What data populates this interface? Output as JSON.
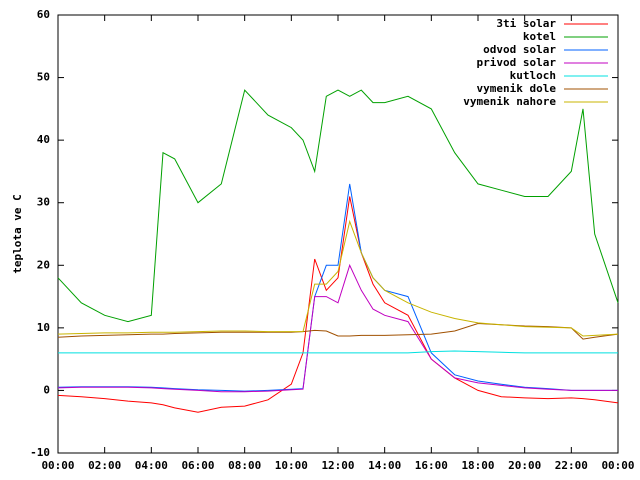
{
  "chart_data": {
    "type": "line",
    "y_label": "teplota ve C",
    "x": [
      0,
      1,
      2,
      3,
      4,
      4.5,
      5,
      6,
      7,
      8,
      9,
      10,
      10.5,
      11,
      11.5,
      12,
      12.5,
      13,
      13.5,
      14,
      15,
      16,
      17,
      18,
      19,
      20,
      21,
      22,
      22.5,
      23,
      24
    ],
    "xlim": [
      0,
      24
    ],
    "xticks": [
      {
        "value": 0,
        "label": "00:00"
      },
      {
        "value": 2,
        "label": "02:00"
      },
      {
        "value": 4,
        "label": "04:00"
      },
      {
        "value": 6,
        "label": "06:00"
      },
      {
        "value": 8,
        "label": "08:00"
      },
      {
        "value": 10,
        "label": "10:00"
      },
      {
        "value": 12,
        "label": "12:00"
      },
      {
        "value": 14,
        "label": "14:00"
      },
      {
        "value": 16,
        "label": "16:00"
      },
      {
        "value": 18,
        "label": "18:00"
      },
      {
        "value": 20,
        "label": "20:00"
      },
      {
        "value": 22,
        "label": "22:00"
      },
      {
        "value": 24,
        "label": "00:00"
      }
    ],
    "ylim": [
      -10,
      60
    ],
    "yticks": [
      -10,
      0,
      10,
      20,
      30,
      40,
      50,
      60
    ],
    "legend": "upper right",
    "series": [
      {
        "name": "3ti solar",
        "color": "#ff0000",
        "values": [
          -0.8,
          -1,
          -1.3,
          -1.7,
          -2,
          -2.3,
          -2.8,
          -3.5,
          -2.7,
          -2.5,
          -1.5,
          1,
          6,
          21,
          16,
          18,
          31,
          22,
          17,
          14,
          12,
          5,
          2,
          0,
          -1,
          -1.2,
          -1.3,
          -1.2,
          -1.3,
          -1.5,
          -2
        ]
      },
      {
        "name": "kotel",
        "color": "#00a000",
        "values": [
          18,
          14,
          12,
          11,
          12,
          38,
          37,
          30,
          33,
          48,
          44,
          42,
          40,
          35,
          47,
          48,
          47,
          48,
          46,
          46,
          47,
          45,
          38,
          33,
          32,
          31,
          31,
          35,
          45,
          25,
          14
        ]
      },
      {
        "name": "odvod solar",
        "color": "#0060ff",
        "values": [
          0.5,
          0.6,
          0.6,
          0.6,
          0.5,
          0.4,
          0.3,
          0.1,
          0,
          -0.1,
          0,
          0.2,
          0.3,
          15,
          20,
          20,
          33,
          22,
          18,
          16,
          15,
          6,
          2.5,
          1.5,
          1,
          0.5,
          0.3,
          0,
          0,
          0,
          0
        ]
      },
      {
        "name": "privod solar",
        "color": "#c000c0",
        "values": [
          0.4,
          0.5,
          0.5,
          0.5,
          0.4,
          0.3,
          0.2,
          0,
          -0.2,
          -0.2,
          -0.1,
          0.1,
          0.2,
          15,
          15,
          14,
          20,
          16,
          13,
          12,
          11,
          5,
          2,
          1.2,
          0.8,
          0.4,
          0.2,
          0,
          0,
          0,
          0
        ]
      },
      {
        "name": "kutloch",
        "color": "#00e0e0",
        "values": [
          6,
          6,
          6,
          6,
          6,
          6,
          6,
          6,
          6,
          6,
          6,
          6,
          6,
          6,
          6,
          6,
          6,
          6,
          6,
          6,
          6,
          6.2,
          6.3,
          6.2,
          6.1,
          6,
          6,
          6,
          6,
          6,
          6
        ]
      },
      {
        "name": "vymenik dole",
        "color": "#a05000",
        "values": [
          8.5,
          8.7,
          8.8,
          8.9,
          9,
          9,
          9.1,
          9.2,
          9.3,
          9.3,
          9.3,
          9.3,
          9.4,
          9.6,
          9.5,
          8.7,
          8.7,
          8.8,
          8.8,
          8.8,
          8.9,
          9,
          9.5,
          10.7,
          10.5,
          10.3,
          10.2,
          10,
          8.2,
          8.5,
          9
        ]
      },
      {
        "name": "vymenik nahore",
        "color": "#c8b400",
        "values": [
          9,
          9.1,
          9.2,
          9.2,
          9.3,
          9.3,
          9.3,
          9.4,
          9.5,
          9.5,
          9.4,
          9.4,
          9.4,
          17,
          17,
          19,
          27,
          22,
          18,
          16,
          14,
          12.5,
          11.5,
          10.8,
          10.5,
          10.2,
          10.1,
          10,
          8.7,
          8.8,
          9
        ]
      }
    ]
  }
}
